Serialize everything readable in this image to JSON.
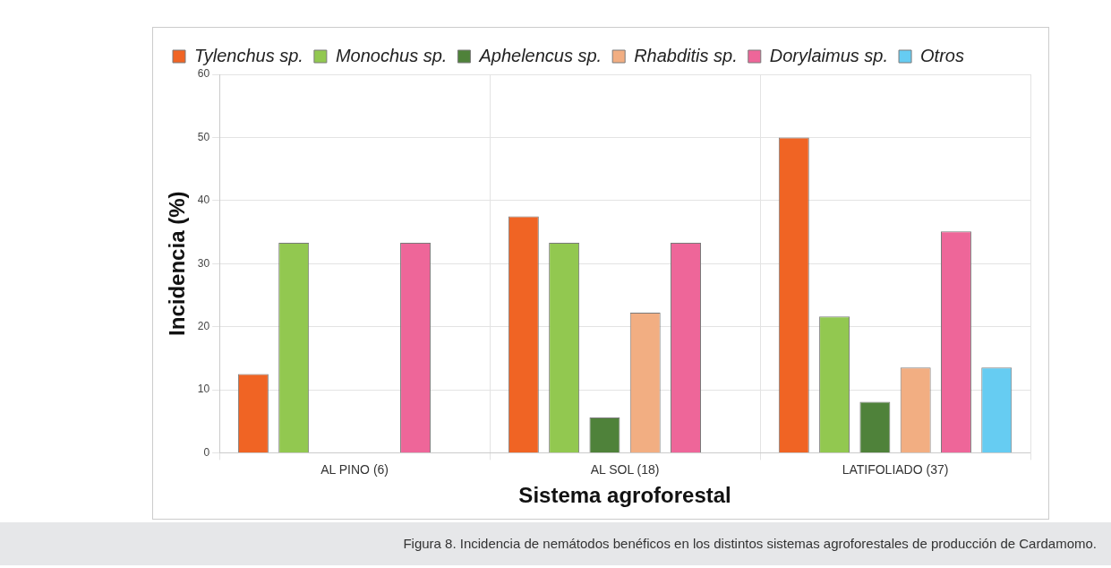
{
  "chart_data": {
    "type": "bar",
    "xlabel": "Sistema agroforestal",
    "ylabel": "Incidencia (%)",
    "categories": [
      "AL PINO (6)",
      "AL SOL (18)",
      "LATIFOLIADO (37)"
    ],
    "series": [
      {
        "name": "Tylenchus sp.",
        "color": "#f06424",
        "values": [
          12.5,
          37.5,
          50
        ]
      },
      {
        "name": "Monochus sp.",
        "color": "#92c850",
        "values": [
          33.3,
          33.3,
          21.6
        ]
      },
      {
        "name": "Aphelencus sp.",
        "color": "#4f823a",
        "values": [
          0,
          5.6,
          8.1
        ]
      },
      {
        "name": "Rhabditis sp.",
        "color": "#f2ae82",
        "values": [
          0,
          22.2,
          13.5
        ]
      },
      {
        "name": "Dorylaimus sp.",
        "color": "#ee6699",
        "values": [
          33.3,
          33.3,
          35.1
        ]
      },
      {
        "name": "Otros",
        "color": "#66ccf2",
        "values": [
          0,
          0,
          13.5
        ]
      }
    ],
    "ylim": [
      0,
      60
    ],
    "yticks": [
      0,
      10,
      20,
      30,
      40,
      50,
      60
    ],
    "grid": true,
    "legend": "top left",
    "annotations": [
      "Figura 8. Incidencia de nemátodos benéficos en los distintos sistemas agroforestales de producción de Cardamomo."
    ]
  }
}
